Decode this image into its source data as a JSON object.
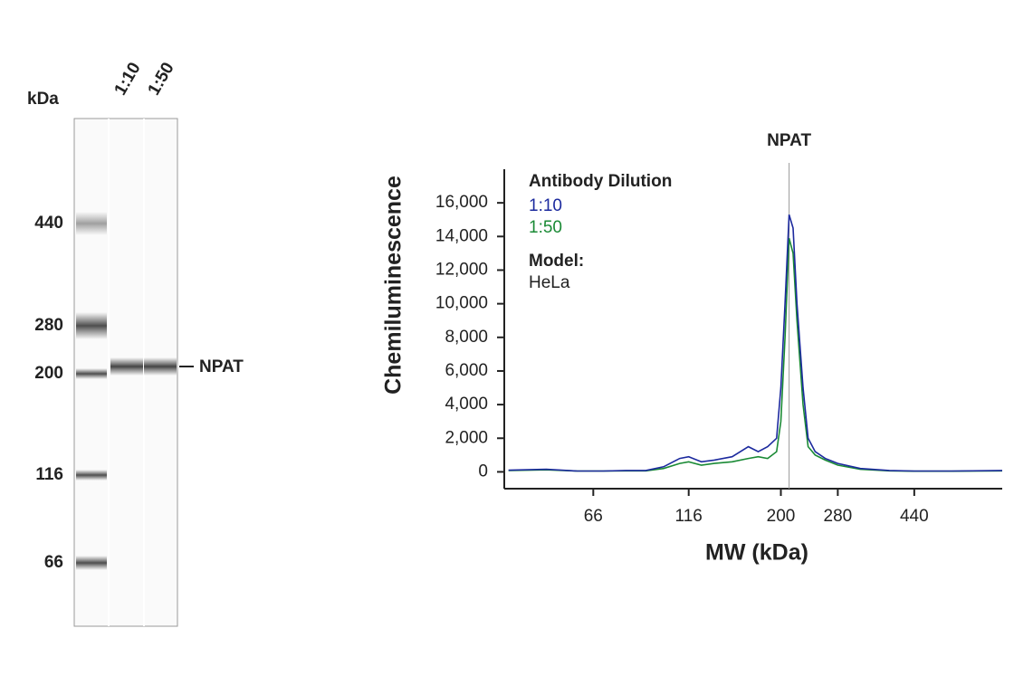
{
  "gel": {
    "unit_label": "kDa",
    "lanes": [
      "1:10",
      "1:50"
    ],
    "markers": [
      440,
      280,
      200,
      116,
      66
    ],
    "band_label": "NPAT"
  },
  "chart_data": {
    "type": "line",
    "y_label": "Chemiluminescence",
    "x_label": "MW (kDa)",
    "legend_title": "Antibody Dilution",
    "model_label": "Model:",
    "model": "HeLa",
    "annotation": {
      "label": "NPAT",
      "x": 210
    },
    "x": [
      40,
      50,
      60,
      70,
      80,
      90,
      100,
      110,
      116,
      125,
      135,
      150,
      165,
      175,
      185,
      195,
      200,
      205,
      210,
      215,
      220,
      228,
      235,
      245,
      260,
      280,
      320,
      380,
      440,
      550,
      740
    ],
    "series": [
      {
        "name": "1:10",
        "color": "#1c2a9e",
        "values": [
          100,
          150,
          50,
          50,
          80,
          80,
          300,
          800,
          900,
          600,
          700,
          900,
          1500,
          1200,
          1500,
          2000,
          5000,
          10000,
          15300,
          14500,
          10000,
          5000,
          2000,
          1200,
          800,
          500,
          200,
          80,
          50,
          50,
          80
        ]
      },
      {
        "name": "1:50",
        "color": "#1a8a35",
        "values": [
          80,
          120,
          50,
          50,
          60,
          60,
          200,
          500,
          600,
          400,
          500,
          600,
          800,
          900,
          800,
          1200,
          3000,
          8000,
          13900,
          13000,
          9000,
          4000,
          1500,
          1000,
          700,
          400,
          150,
          60,
          40,
          40,
          60
        ]
      }
    ],
    "xscale": "log",
    "xlim": [
      39,
      740
    ],
    "xticks": [
      66,
      116,
      200,
      280,
      440
    ],
    "ylim": [
      -1000,
      18000
    ],
    "yticks": [
      0,
      {
        "value": 2000,
        "label": "2,000"
      },
      {
        "value": 4000,
        "label": "4,000"
      },
      {
        "value": 6000,
        "label": "6,000"
      },
      {
        "value": 8000,
        "label": "8,000"
      },
      {
        "value": 10000,
        "label": "10,000"
      },
      {
        "value": 12000,
        "label": "12,000"
      },
      {
        "value": 14000,
        "label": "14,000"
      },
      {
        "value": 16000,
        "label": "16,000"
      }
    ]
  }
}
